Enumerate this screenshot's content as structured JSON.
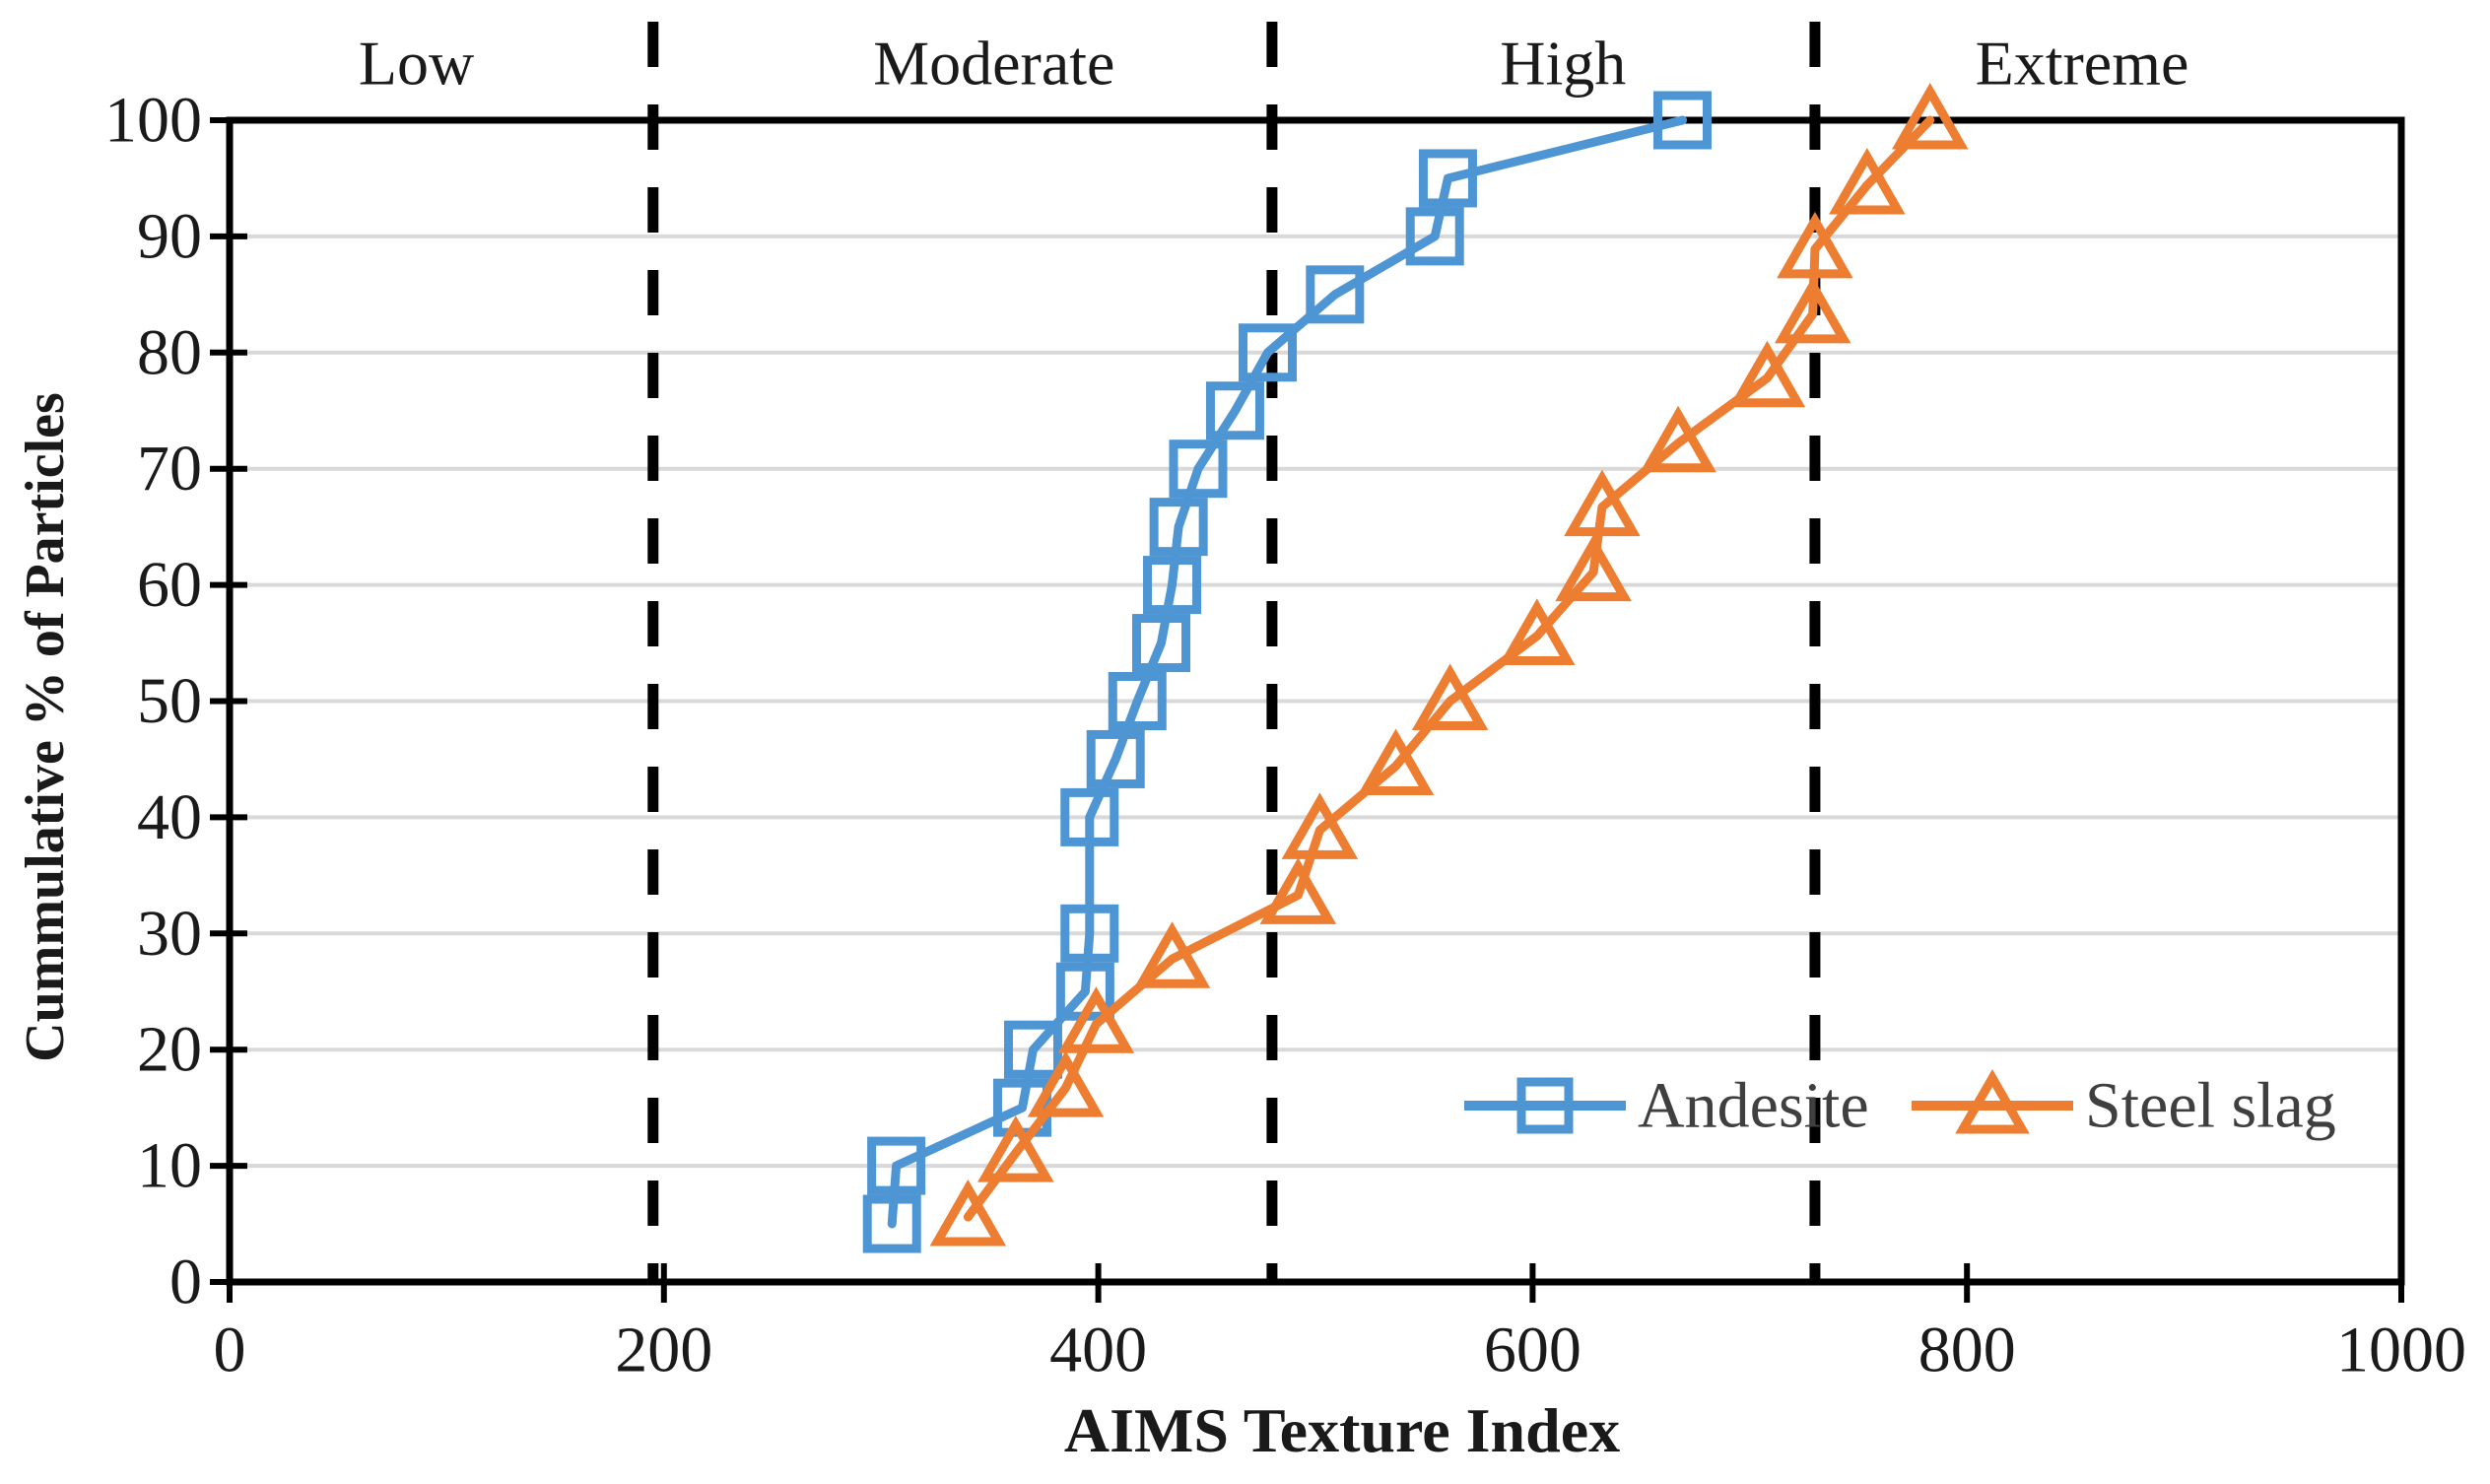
{
  "figure": {
    "background": "#FFFFFF",
    "text_color": "#1A1A1A",
    "legend_text_color": "#3F3F3F",
    "gridline_color": "#D9D9D9",
    "axis_color": "#000000"
  },
  "chart_data": {
    "type": "line",
    "title": "",
    "xlabel": "AIMS Texture Index",
    "ylabel": "Cummulative % of Particles",
    "xlim": [
      0,
      1000
    ],
    "ylim": [
      0,
      100
    ],
    "x_ticks": [
      0,
      200,
      400,
      600,
      800,
      1000
    ],
    "y_ticks": [
      0,
      10,
      20,
      30,
      40,
      50,
      60,
      70,
      80,
      90,
      100
    ],
    "grid": "horizontal",
    "legend_position": "inside-lower-right",
    "zone_dividers": {
      "style": "dashed",
      "color": "#000000",
      "x_values": [
        195,
        480,
        730
      ]
    },
    "zone_labels": [
      {
        "label": "Low",
        "x_center": 86
      },
      {
        "label": "Moderate",
        "x_center": 352
      },
      {
        "label": "High",
        "x_center": 614
      },
      {
        "label": "Extreme",
        "x_center": 853
      }
    ],
    "series": [
      {
        "name": "Andesite",
        "color": "#4E95D4",
        "marker": "square-open",
        "points": [
          [
            305,
            5
          ],
          [
            307,
            10
          ],
          [
            365,
            15
          ],
          [
            370,
            20
          ],
          [
            394,
            25
          ],
          [
            396,
            30
          ],
          [
            396,
            40
          ],
          [
            408,
            45
          ],
          [
            418,
            50
          ],
          [
            429,
            55
          ],
          [
            434,
            60
          ],
          [
            437,
            65
          ],
          [
            446,
            70
          ],
          [
            463,
            75
          ],
          [
            478,
            80
          ],
          [
            509,
            85
          ],
          [
            555,
            90
          ],
          [
            561,
            95
          ],
          [
            669,
            100
          ]
        ]
      },
      {
        "name": "Steel slag",
        "color": "#ED7D31",
        "marker": "triangle-open",
        "points": [
          [
            340,
            5.6
          ],
          [
            362,
            11.1
          ],
          [
            385,
            16.7
          ],
          [
            399,
            22.2
          ],
          [
            434,
            27.8
          ],
          [
            492,
            33.3
          ],
          [
            502,
            38.9
          ],
          [
            537,
            44.4
          ],
          [
            562,
            50
          ],
          [
            602,
            55.6
          ],
          [
            628,
            61.1
          ],
          [
            632,
            66.7
          ],
          [
            667,
            72.2
          ],
          [
            708,
            77.8
          ],
          [
            729,
            83.3
          ],
          [
            730,
            88.9
          ],
          [
            754,
            94.4
          ],
          [
            783,
            100
          ]
        ]
      }
    ]
  }
}
